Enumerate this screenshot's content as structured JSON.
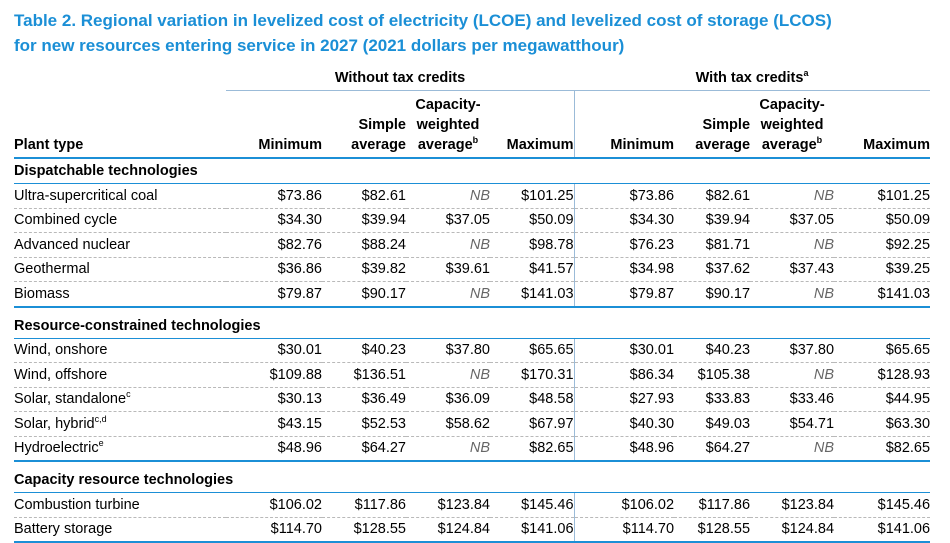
{
  "title": {
    "line1": "Table 2. Regional variation in levelized cost of electricity (LCOE) and levelized cost of storage (LCOS)",
    "line2": "for new resources entering service in 2027 (2021 dollars per megawatthour)"
  },
  "group_headers": {
    "without": "Without tax credits",
    "with": "With tax credits",
    "with_note": "a"
  },
  "columns": {
    "plant": "Plant type",
    "minimum": "Minimum",
    "simple_1": "Simple",
    "simple_2": "average",
    "cap_1": "Capacity-",
    "cap_2": "weighted",
    "cap_3": "average",
    "cap_note": "b",
    "maximum": "Maximum"
  },
  "categories": [
    {
      "name": "Dispatchable technologies",
      "rows": [
        {
          "plant": "Ultra-supercritical coal",
          "note": "",
          "v": [
            "$73.86",
            "$82.61",
            "NB",
            "$101.25",
            "$73.86",
            "$82.61",
            "NB",
            "$101.25"
          ]
        },
        {
          "plant": "Combined cycle",
          "note": "",
          "v": [
            "$34.30",
            "$39.94",
            "$37.05",
            "$50.09",
            "$34.30",
            "$39.94",
            "$37.05",
            "$50.09"
          ]
        },
        {
          "plant": "Advanced nuclear",
          "note": "",
          "v": [
            "$82.76",
            "$88.24",
            "NB",
            "$98.78",
            "$76.23",
            "$81.71",
            "NB",
            "$92.25"
          ]
        },
        {
          "plant": "Geothermal",
          "note": "",
          "v": [
            "$36.86",
            "$39.82",
            "$39.61",
            "$41.57",
            "$34.98",
            "$37.62",
            "$37.43",
            "$39.25"
          ]
        },
        {
          "plant": "Biomass",
          "note": "",
          "v": [
            "$79.87",
            "$90.17",
            "NB",
            "$141.03",
            "$79.87",
            "$90.17",
            "NB",
            "$141.03"
          ]
        }
      ]
    },
    {
      "name": "Resource-constrained technologies",
      "rows": [
        {
          "plant": "Wind, onshore",
          "note": "",
          "v": [
            "$30.01",
            "$40.23",
            "$37.80",
            "$65.65",
            "$30.01",
            "$40.23",
            "$37.80",
            "$65.65"
          ]
        },
        {
          "plant": "Wind, offshore",
          "note": "",
          "v": [
            "$109.88",
            "$136.51",
            "NB",
            "$170.31",
            "$86.34",
            "$105.38",
            "NB",
            "$128.93"
          ]
        },
        {
          "plant": "Solar, standalone",
          "note": "c",
          "v": [
            "$30.13",
            "$36.49",
            "$36.09",
            "$48.58",
            "$27.93",
            "$33.83",
            "$33.46",
            "$44.95"
          ]
        },
        {
          "plant": "Solar, hybrid",
          "note": "c,d",
          "v": [
            "$43.15",
            "$52.53",
            "$58.62",
            "$67.97",
            "$40.30",
            "$49.03",
            "$54.71",
            "$63.30"
          ]
        },
        {
          "plant": "Hydroelectric",
          "note": "e",
          "v": [
            "$48.96",
            "$64.27",
            "NB",
            "$82.65",
            "$48.96",
            "$64.27",
            "NB",
            "$82.65"
          ]
        }
      ]
    },
    {
      "name": "Capacity resource technologies",
      "rows": [
        {
          "plant": "Combustion turbine",
          "note": "",
          "v": [
            "$106.02",
            "$117.86",
            "$123.84",
            "$145.46",
            "$106.02",
            "$117.86",
            "$123.84",
            "$145.46"
          ]
        },
        {
          "plant": "Battery storage",
          "note": "",
          "v": [
            "$114.70",
            "$128.55",
            "$124.84",
            "$141.06",
            "$114.70",
            "$128.55",
            "$124.84",
            "$141.06"
          ]
        }
      ]
    }
  ]
}
